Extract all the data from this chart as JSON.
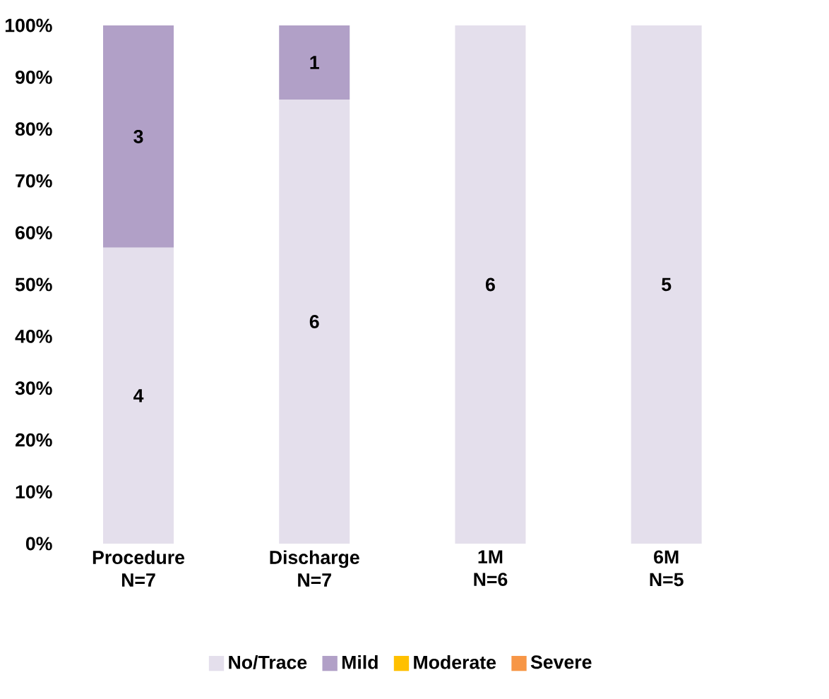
{
  "chart_data": {
    "type": "bar",
    "stacked": true,
    "categories": [
      "Procedure\nN=7",
      "Discharge\nN=7",
      "1M\nN=6",
      "6M\nN=5"
    ],
    "series": [
      {
        "name": "No/Trace",
        "color": "#e4dfec",
        "values": [
          57.1,
          85.7,
          100,
          100
        ]
      },
      {
        "name": "Mild",
        "color": "#b1a0c7",
        "values": [
          42.9,
          14.3,
          0,
          0
        ]
      },
      {
        "name": "Moderate",
        "color": "#ffc000",
        "values": [
          0,
          0,
          0,
          0
        ]
      },
      {
        "name": "Severe",
        "color": "#f79646",
        "values": [
          0,
          0,
          0,
          0
        ]
      }
    ],
    "annotations": [
      "4",
      "6",
      "6",
      "5",
      "3",
      "1"
    ],
    "ylim": [
      0,
      100
    ],
    "yticks": [
      {
        "value": 0,
        "label": "0%"
      },
      {
        "value": 10,
        "label": "10%"
      },
      {
        "value": 20,
        "label": "20%"
      },
      {
        "value": 30,
        "label": "30%"
      },
      {
        "value": 40,
        "label": "40%"
      },
      {
        "value": 50,
        "label": "50%"
      },
      {
        "value": 60,
        "label": "60%"
      },
      {
        "value": 70,
        "label": "70%"
      },
      {
        "value": 80,
        "label": "80%"
      },
      {
        "value": 90,
        "label": "90%"
      },
      {
        "value": 100,
        "label": "100%"
      }
    ],
    "grid": false,
    "legend": "bottom"
  }
}
